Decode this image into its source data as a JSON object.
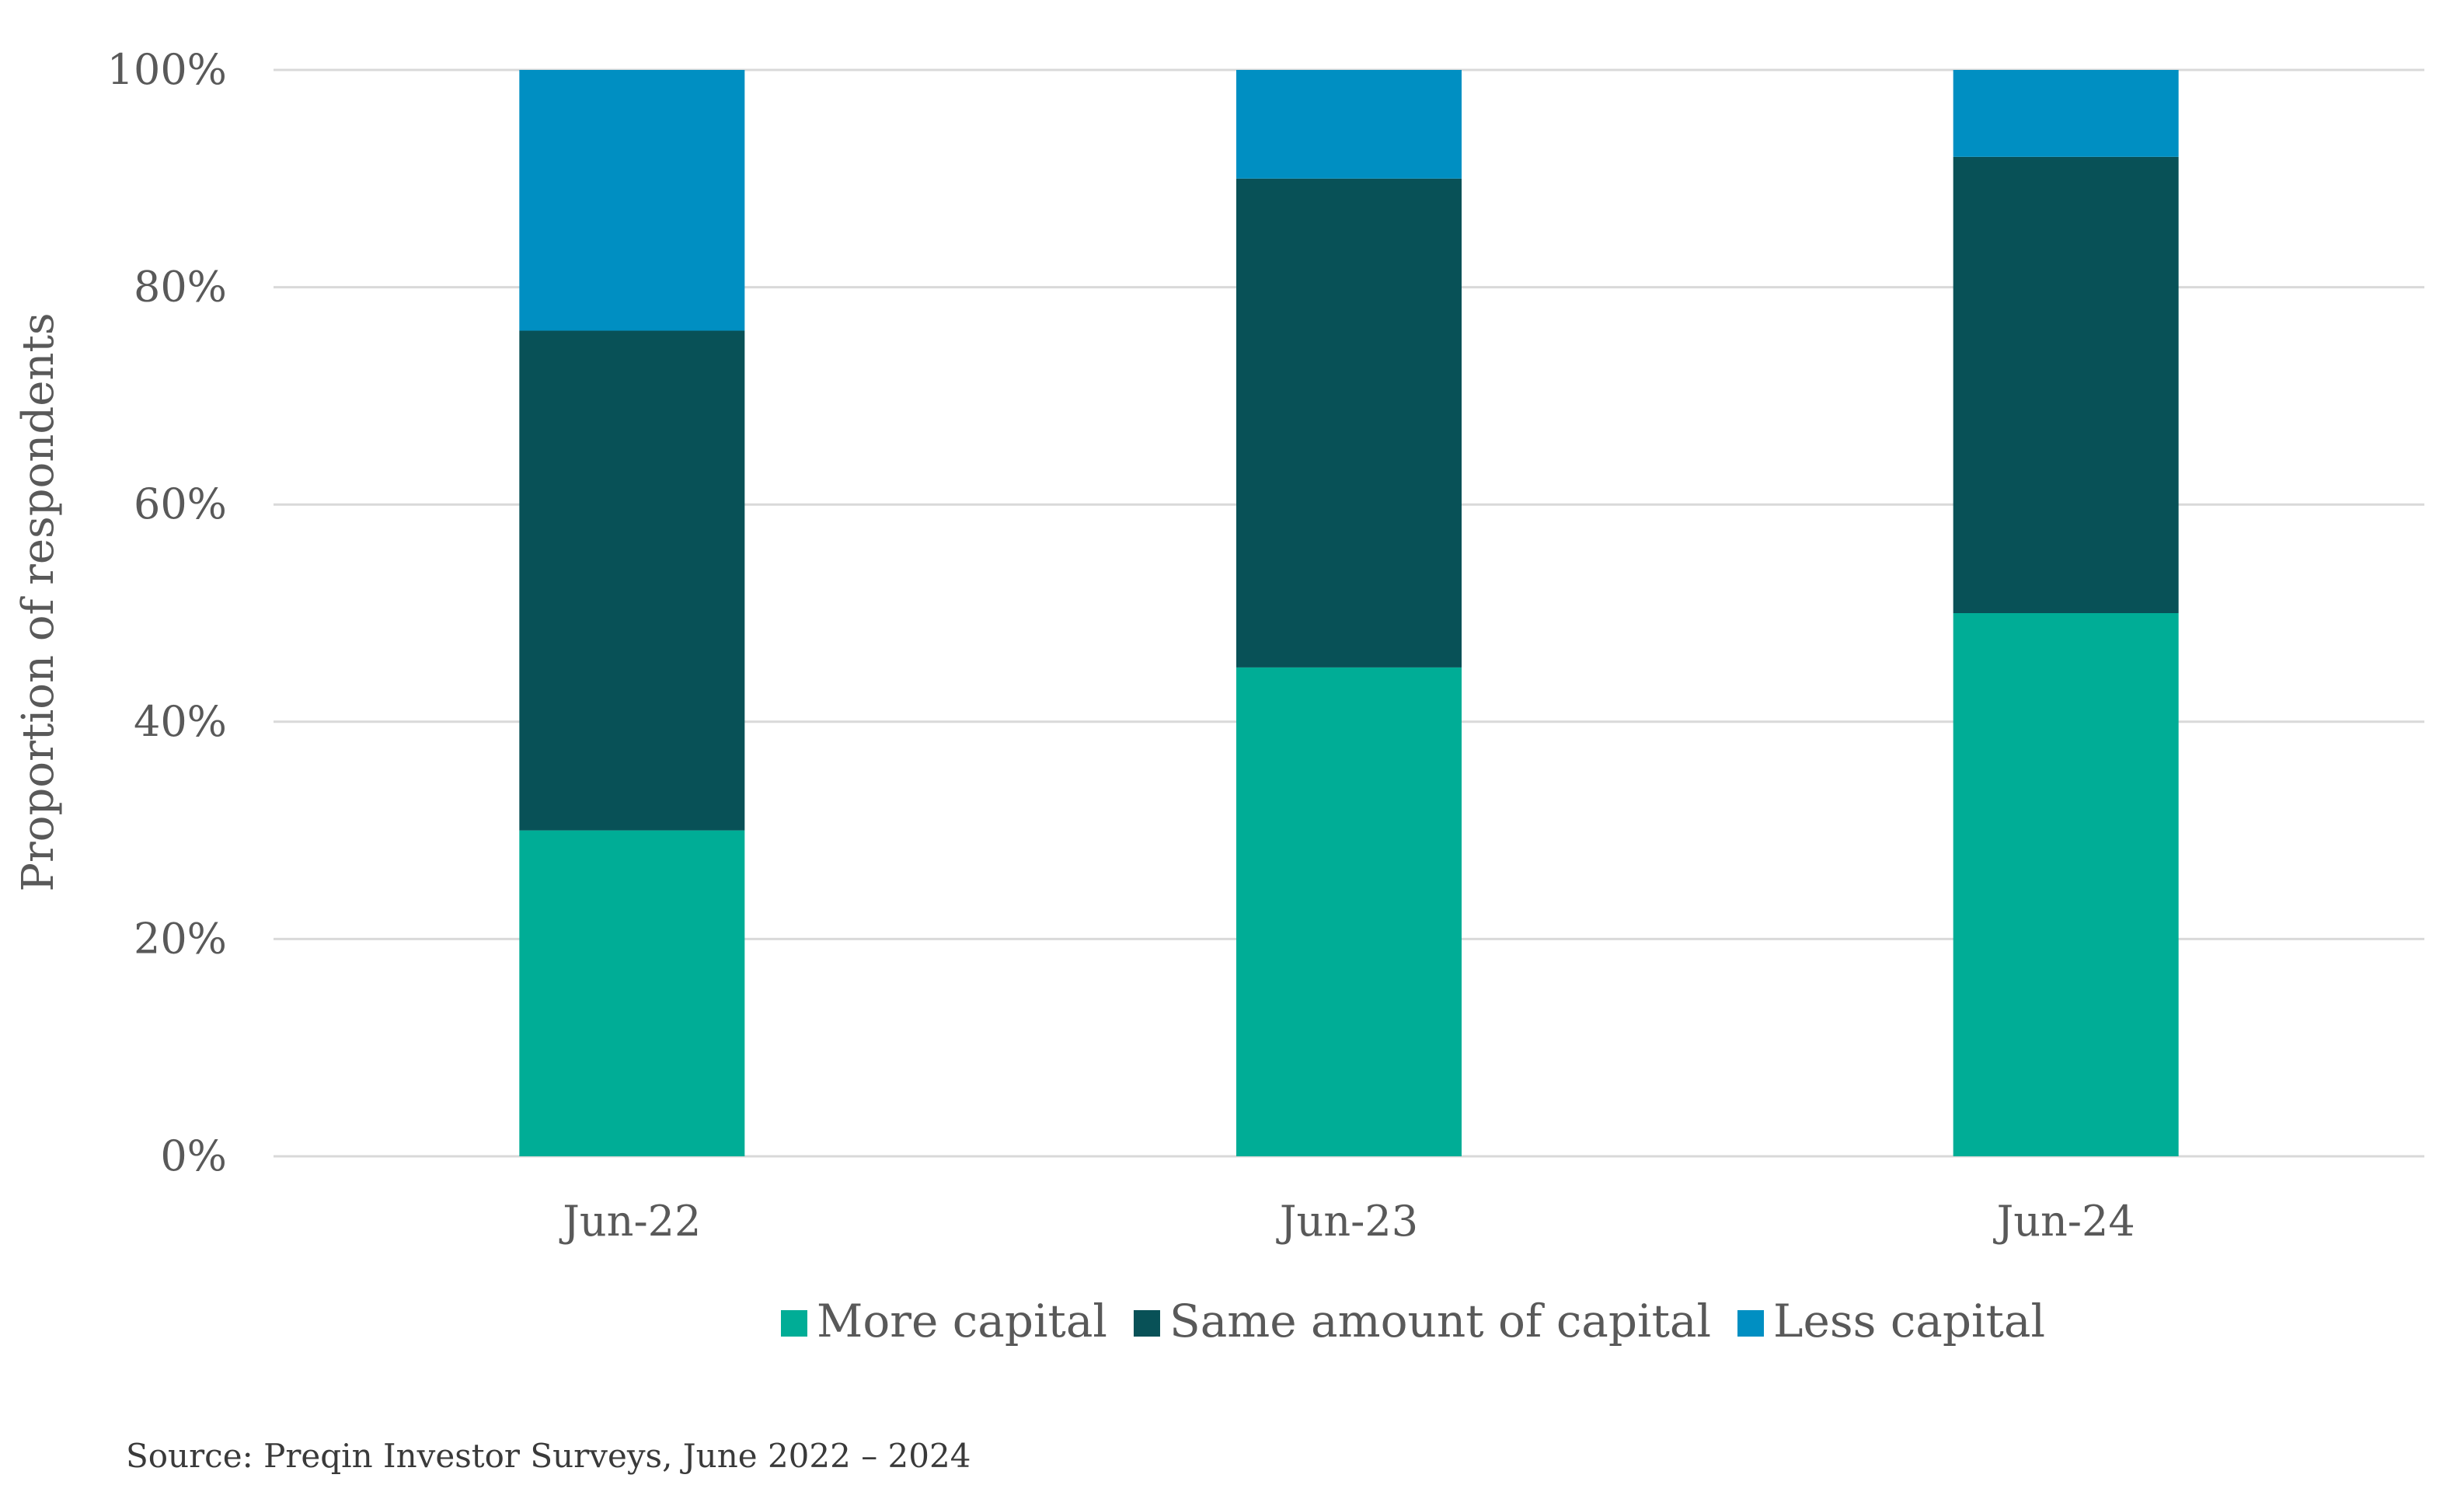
{
  "chart_data": {
    "type": "bar",
    "stacked": true,
    "categories": [
      "Jun-22",
      "Jun-23",
      "Jun-24"
    ],
    "series": [
      {
        "name": "More capital",
        "values": [
          30,
          45,
          50
        ],
        "color": "#00AD96"
      },
      {
        "name": "Same amount of capital",
        "values": [
          46,
          45,
          42
        ],
        "color": "#085157"
      },
      {
        "name": "Less capital",
        "values": [
          24,
          10,
          8
        ],
        "color": "#008FC2"
      }
    ],
    "title": "",
    "xlabel": "",
    "ylabel": "Proportion of respondents",
    "ylim": [
      0,
      100
    ],
    "yticks": [
      "0%",
      "20%",
      "40%",
      "60%",
      "80%",
      "100%"
    ],
    "ytick_values": [
      0,
      20,
      40,
      60,
      80,
      100
    ],
    "grid": true,
    "legend_position": "bottom",
    "gridline_color": "#D9D9D9"
  },
  "source": "Source: Preqin Investor Surveys, June 2022 – 2024"
}
